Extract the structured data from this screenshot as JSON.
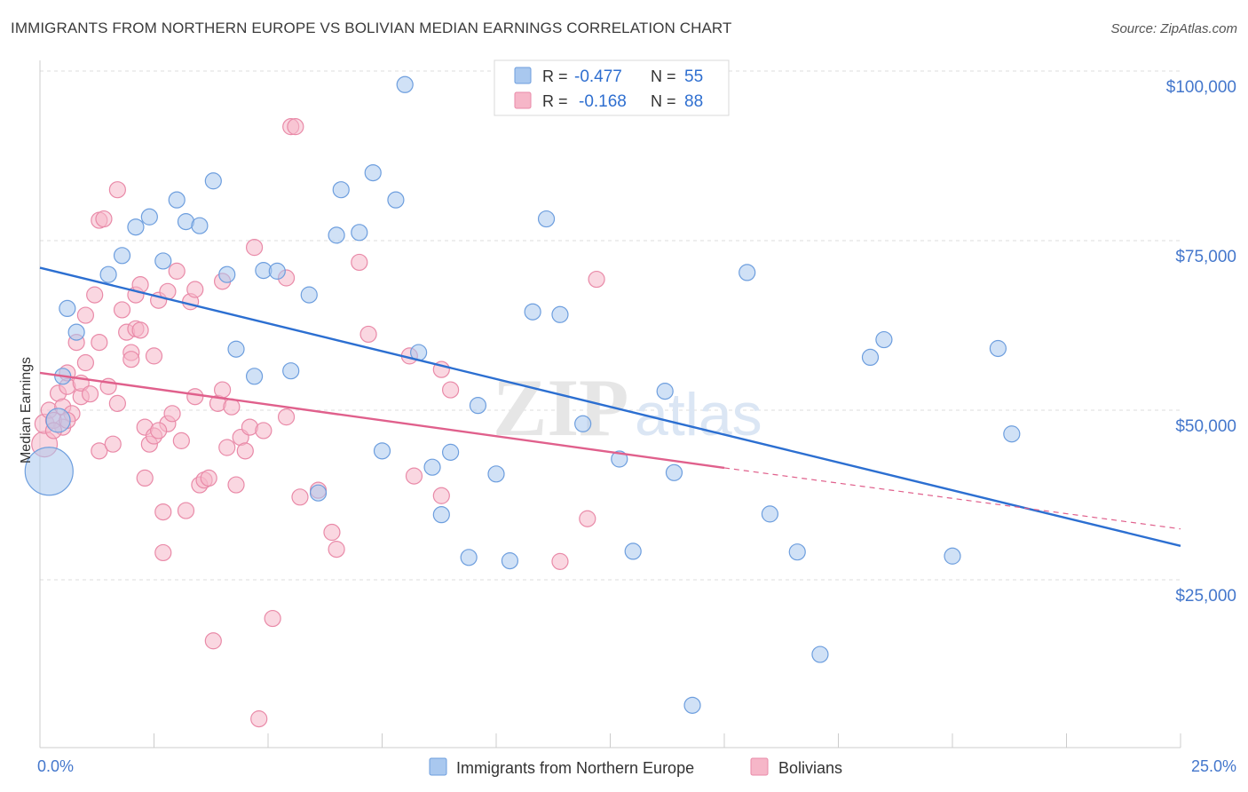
{
  "title": "IMMIGRANTS FROM NORTHERN EUROPE VS BOLIVIAN MEDIAN EARNINGS CORRELATION CHART",
  "source": "Source: ZipAtlas.com",
  "watermark": {
    "zip": "ZIP",
    "atlas": "atlas"
  },
  "colors": {
    "blue_fill": "#a9c8ef",
    "blue_stroke": "#6d9ede",
    "blue_line": "#2c6fd1",
    "pink_fill": "#f6b6c8",
    "pink_stroke": "#e98aa8",
    "pink_line": "#e0608c",
    "tick_label": "#4477cc",
    "grid": "#dddddd"
  },
  "legend": {
    "rows": [
      {
        "r_label": "R =",
        "r_value": "-0.477",
        "n_label": "N =",
        "n_value": "55"
      },
      {
        "r_label": "R =",
        "r_value": "-0.168",
        "n_label": "N =",
        "n_value": "88"
      }
    ]
  },
  "chart_data": {
    "type": "scatter",
    "xlabel": "",
    "ylabel": "Median Earnings",
    "xlim": [
      0,
      25
    ],
    "ylim": [
      0,
      105000
    ],
    "x_tick_labels": [
      {
        "value": 0,
        "label": "0.0%"
      },
      {
        "value": 25,
        "label": "25.0%"
      }
    ],
    "y_ticks": [
      {
        "value": 25000,
        "label": "$25,000"
      },
      {
        "value": 50000,
        "label": "$50,000"
      },
      {
        "value": 75000,
        "label": "$75,000"
      },
      {
        "value": 100000,
        "label": "$100,000"
      }
    ],
    "series": [
      {
        "name": "Immigrants from Northern Europe",
        "color": "blue",
        "r": -0.477,
        "n": 55,
        "trend": {
          "x0": 0,
          "y0": 71000,
          "x1": 25,
          "y1": 30000
        },
        "points": [
          [
            0.2,
            41000,
            3
          ],
          [
            0.4,
            48500,
            1.5
          ],
          [
            0.5,
            55000,
            1
          ],
          [
            0.6,
            65000,
            1
          ],
          [
            0.8,
            61500,
            1
          ],
          [
            1.5,
            70000,
            1
          ],
          [
            1.8,
            72800,
            1
          ],
          [
            2.1,
            77000,
            1
          ],
          [
            2.4,
            78500,
            1
          ],
          [
            2.7,
            72000,
            1
          ],
          [
            3.0,
            81000,
            1
          ],
          [
            3.2,
            77800,
            1
          ],
          [
            3.5,
            77200,
            1
          ],
          [
            3.8,
            83800,
            1
          ],
          [
            4.1,
            70000,
            1
          ],
          [
            4.3,
            59000,
            1
          ],
          [
            4.7,
            55000,
            1
          ],
          [
            4.9,
            70600,
            1
          ],
          [
            5.2,
            70500,
            1
          ],
          [
            5.5,
            55800,
            1
          ],
          [
            5.9,
            67000,
            1
          ],
          [
            6.1,
            37800,
            1
          ],
          [
            6.5,
            75800,
            1
          ],
          [
            6.6,
            82500,
            1
          ],
          [
            7.0,
            76200,
            1
          ],
          [
            7.3,
            85000,
            1
          ],
          [
            7.5,
            44000,
            1
          ],
          [
            7.8,
            81000,
            1
          ],
          [
            8.0,
            98000,
            1
          ],
          [
            8.3,
            58500,
            1
          ],
          [
            8.6,
            41600,
            1
          ],
          [
            8.8,
            34600,
            1
          ],
          [
            9.0,
            43800,
            1
          ],
          [
            9.4,
            28300,
            1
          ],
          [
            9.6,
            50700,
            1
          ],
          [
            10.0,
            40600,
            1
          ],
          [
            10.3,
            27800,
            1
          ],
          [
            10.8,
            64500,
            1
          ],
          [
            11.1,
            78200,
            1
          ],
          [
            11.4,
            64100,
            1
          ],
          [
            11.9,
            48000,
            1
          ],
          [
            12.7,
            42800,
            1
          ],
          [
            13.0,
            29200,
            1
          ],
          [
            13.7,
            52800,
            1
          ],
          [
            13.9,
            40800,
            1
          ],
          [
            14.3,
            6500,
            1
          ],
          [
            15.5,
            70300,
            1
          ],
          [
            16.0,
            34700,
            1
          ],
          [
            16.6,
            29100,
            1
          ],
          [
            17.1,
            14000,
            1
          ],
          [
            18.2,
            57800,
            1
          ],
          [
            18.5,
            60400,
            1
          ],
          [
            20.0,
            28500,
            1
          ],
          [
            21.0,
            59100,
            1
          ],
          [
            21.3,
            46500,
            1
          ]
        ]
      },
      {
        "name": "Bolivians",
        "color": "pink",
        "r": -0.168,
        "n": 88,
        "trend": {
          "x0": 0,
          "y0": 55500,
          "x1": 15,
          "y1": 41500,
          "dash_x1": 25,
          "dash_y1": 32500
        },
        "points": [
          [
            0.1,
            45000,
            1.6
          ],
          [
            0.1,
            48000,
            1.2
          ],
          [
            0.2,
            50000,
            1
          ],
          [
            0.4,
            52500,
            1
          ],
          [
            0.5,
            47500,
            1
          ],
          [
            0.5,
            50500,
            1
          ],
          [
            0.6,
            53500,
            1
          ],
          [
            0.6,
            55500,
            1
          ],
          [
            0.7,
            49500,
            1
          ],
          [
            0.8,
            60000,
            1
          ],
          [
            0.9,
            52000,
            1
          ],
          [
            0.9,
            54000,
            1
          ],
          [
            1.0,
            57000,
            1
          ],
          [
            1.0,
            64000,
            1
          ],
          [
            1.2,
            67000,
            1
          ],
          [
            1.3,
            44000,
            1
          ],
          [
            1.3,
            60000,
            1
          ],
          [
            1.3,
            78000,
            1
          ],
          [
            1.4,
            78200,
            1
          ],
          [
            1.5,
            53500,
            1
          ],
          [
            1.6,
            45000,
            1
          ],
          [
            1.7,
            51000,
            1
          ],
          [
            1.7,
            82500,
            1
          ],
          [
            1.8,
            64800,
            1
          ],
          [
            1.9,
            61500,
            1
          ],
          [
            2.0,
            58500,
            1
          ],
          [
            2.0,
            57500,
            1
          ],
          [
            2.1,
            62000,
            1
          ],
          [
            2.1,
            67000,
            1
          ],
          [
            2.2,
            61800,
            1
          ],
          [
            2.2,
            68500,
            1
          ],
          [
            2.3,
            40000,
            1
          ],
          [
            2.3,
            47500,
            1
          ],
          [
            2.4,
            45000,
            1
          ],
          [
            2.5,
            58000,
            1
          ],
          [
            2.5,
            46200,
            1
          ],
          [
            2.6,
            66200,
            1
          ],
          [
            2.7,
            29000,
            1
          ],
          [
            2.7,
            35000,
            1
          ],
          [
            2.8,
            48000,
            1
          ],
          [
            2.8,
            67500,
            1
          ],
          [
            2.9,
            49500,
            1
          ],
          [
            3.0,
            70500,
            1
          ],
          [
            3.1,
            45500,
            1
          ],
          [
            3.2,
            35200,
            1
          ],
          [
            3.3,
            66000,
            1
          ],
          [
            3.4,
            52000,
            1
          ],
          [
            3.4,
            67800,
            1
          ],
          [
            3.5,
            39000,
            1
          ],
          [
            3.6,
            39700,
            1
          ],
          [
            3.7,
            40000,
            1
          ],
          [
            3.8,
            16000,
            1
          ],
          [
            3.9,
            51000,
            1
          ],
          [
            4.0,
            69000,
            1
          ],
          [
            4.0,
            53000,
            1
          ],
          [
            4.1,
            44500,
            1
          ],
          [
            4.2,
            50500,
            1
          ],
          [
            4.3,
            39000,
            1
          ],
          [
            4.4,
            46000,
            1
          ],
          [
            4.5,
            44000,
            1
          ],
          [
            4.6,
            47500,
            1
          ],
          [
            4.7,
            74000,
            1
          ],
          [
            4.8,
            4500,
            1
          ],
          [
            4.9,
            47000,
            1
          ],
          [
            5.1,
            19300,
            1
          ],
          [
            5.4,
            69500,
            1
          ],
          [
            5.4,
            49000,
            1
          ],
          [
            5.5,
            91800,
            1
          ],
          [
            5.6,
            91800,
            1
          ],
          [
            5.7,
            37200,
            1
          ],
          [
            6.1,
            38200,
            1
          ],
          [
            6.4,
            32000,
            1
          ],
          [
            6.5,
            29500,
            1
          ],
          [
            7.0,
            71800,
            1
          ],
          [
            7.2,
            61200,
            1
          ],
          [
            8.1,
            58000,
            1
          ],
          [
            8.2,
            40300,
            1
          ],
          [
            8.8,
            56000,
            1
          ],
          [
            8.8,
            37400,
            1
          ],
          [
            9.0,
            53000,
            1
          ],
          [
            11.4,
            27700,
            1
          ],
          [
            12.0,
            34000,
            1
          ],
          [
            12.2,
            69300,
            1
          ],
          [
            0.3,
            48500,
            1
          ],
          [
            0.3,
            47000,
            1
          ],
          [
            0.6,
            48500,
            1
          ],
          [
            1.1,
            52400,
            1
          ],
          [
            2.6,
            47000,
            1
          ]
        ]
      }
    ],
    "legend_entries": [
      "Immigrants from Northern Europe",
      "Bolivians"
    ]
  }
}
